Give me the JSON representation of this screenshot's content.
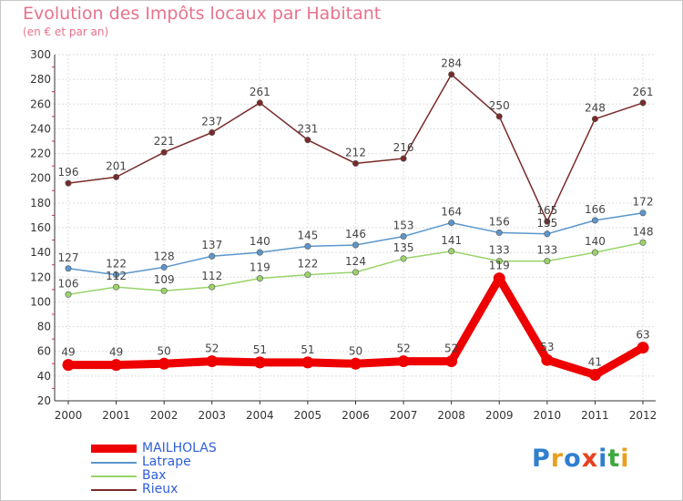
{
  "chart_data": {
    "type": "line",
    "title": "Evolution des Impôts locaux par Habitant",
    "subtitle": "(en € et par an)",
    "x": [
      "2000",
      "2001",
      "2002",
      "2003",
      "2004",
      "2005",
      "2006",
      "2007",
      "2008",
      "2009",
      "2010",
      "2011",
      "2012"
    ],
    "ylim": [
      20,
      300
    ],
    "yticks": [
      20,
      40,
      60,
      80,
      100,
      120,
      140,
      160,
      180,
      200,
      220,
      240,
      260,
      280,
      300
    ],
    "grid": true,
    "series": [
      {
        "name": "MAILHOLAS",
        "color": "#ee0000",
        "values": [
          49,
          49,
          50,
          52,
          51,
          51,
          50,
          52,
          52,
          119,
          53,
          41,
          63
        ]
      },
      {
        "name": "Latrape",
        "color": "#5b97cc",
        "values": [
          127,
          122,
          128,
          137,
          140,
          145,
          146,
          153,
          164,
          156,
          155,
          166,
          172
        ]
      },
      {
        "name": "Bax",
        "color": "#99d46a",
        "values": [
          106,
          112,
          109,
          112,
          119,
          122,
          124,
          135,
          141,
          133,
          133,
          140,
          148
        ]
      },
      {
        "name": "Rieux",
        "color": "#7a2a2a",
        "values": [
          196,
          201,
          221,
          237,
          261,
          231,
          212,
          216,
          284,
          250,
          165,
          248,
          261
        ]
      }
    ]
  },
  "logo": {
    "text": "Proxiti",
    "colors": [
      "#2f7fd0",
      "#e8a020",
      "#2f7fd0",
      "#e84020",
      "#2f7fd0",
      "#3fa83f",
      "#e8a020"
    ]
  }
}
